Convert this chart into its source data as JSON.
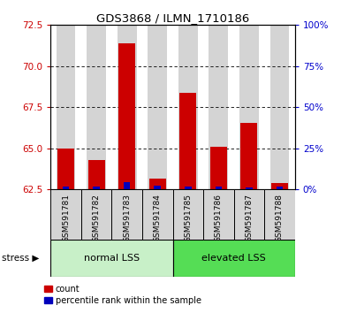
{
  "title": "GDS3868 / ILMN_1710186",
  "samples": [
    "GSM591781",
    "GSM591782",
    "GSM591783",
    "GSM591784",
    "GSM591785",
    "GSM591786",
    "GSM591787",
    "GSM591788"
  ],
  "red_values": [
    65.0,
    64.3,
    71.4,
    63.15,
    68.35,
    65.1,
    66.55,
    62.9
  ],
  "blue_values_pct": [
    1.5,
    1.5,
    4.5,
    2.0,
    1.5,
    1.5,
    1.0,
    1.5
  ],
  "ylim_left": [
    62.5,
    72.5
  ],
  "yticks_left": [
    62.5,
    65.0,
    67.5,
    70.0,
    72.5
  ],
  "ylim_right": [
    0,
    100
  ],
  "yticks_right": [
    0,
    25,
    50,
    75,
    100
  ],
  "ytick_labels_right": [
    "0%",
    "25%",
    "50%",
    "75%",
    "100%"
  ],
  "group1_label": "normal LSS",
  "group2_label": "elevated LSS",
  "group1_color": "#c8f0c8",
  "group2_color": "#55dd55",
  "bar_color_red": "#cc0000",
  "bar_color_blue": "#0000bb",
  "baseline": 62.5,
  "legend_red": "count",
  "legend_blue": "percentile rank within the sample",
  "left_axis_color": "#cc0000",
  "right_axis_color": "#0000cc",
  "bar_width": 0.55,
  "blue_bar_width": 0.22,
  "col_bg_color": "#d4d4d4",
  "plot_bg": "#ffffff",
  "border_color": "#000000"
}
